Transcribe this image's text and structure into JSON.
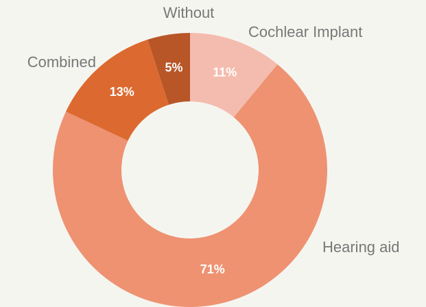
{
  "chart_data": {
    "type": "donut",
    "categories": [
      "Cochlear Implant",
      "Hearing aid",
      "Combined",
      "Without"
    ],
    "values": [
      11,
      71,
      13,
      5
    ],
    "value_labels": [
      "11%",
      "71%",
      "13%",
      "5%"
    ],
    "colors": [
      "#f4bcae",
      "#ee9272",
      "#dc6a30",
      "#b85628"
    ]
  }
}
